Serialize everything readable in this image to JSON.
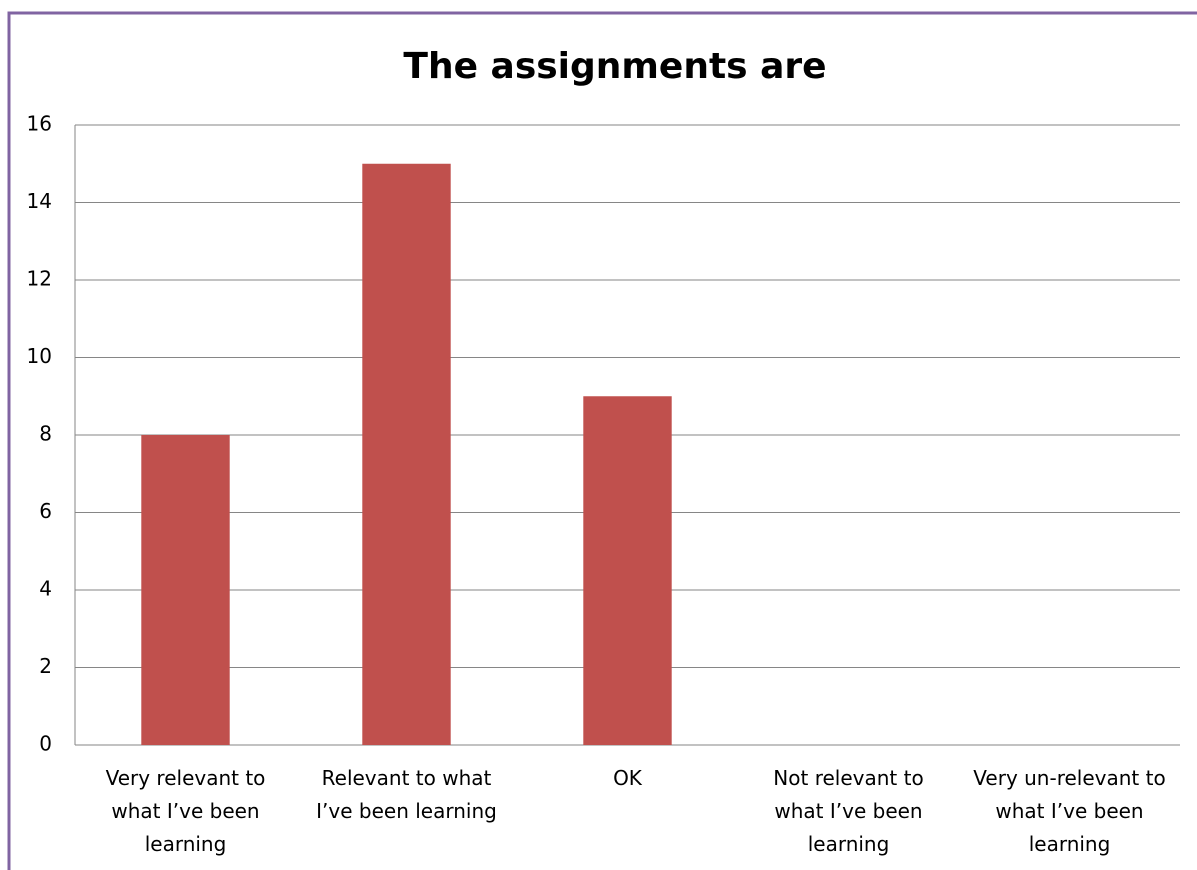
{
  "chart_data": {
    "type": "bar",
    "title": "The assignments are",
    "categories": [
      "Very relevant to what I’ve been learning",
      "Relevant to what I’ve been learning",
      "OK",
      "Not relevant to what I’ve been learning",
      "Very un-relevant to what I’ve been learning"
    ],
    "values": [
      8,
      15,
      9,
      0,
      0
    ],
    "color": "#c0504d",
    "ylim": [
      0,
      16
    ],
    "yticks": [
      0,
      2,
      4,
      6,
      8,
      10,
      12,
      14,
      16
    ],
    "grid": true
  }
}
